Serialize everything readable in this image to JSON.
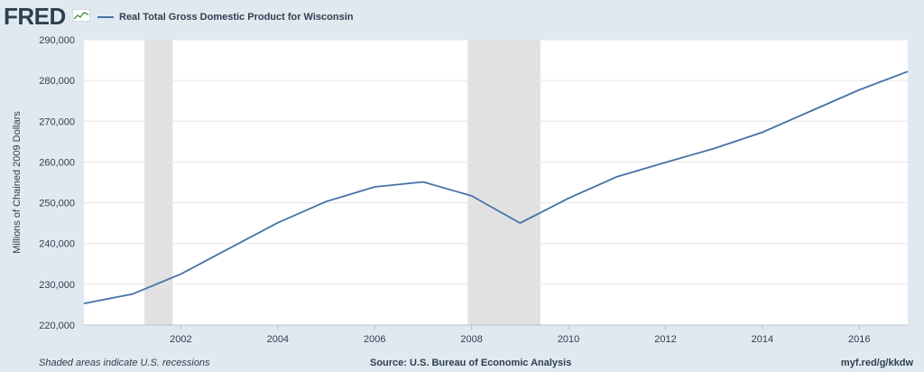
{
  "header": {
    "logo_text": "FRED",
    "logo_icon": "chart-line-icon",
    "legend_label": "Real Total Gross Domestic Product for Wisconsin",
    "series_color": "#4572a7"
  },
  "footer": {
    "note": "Shaded areas indicate U.S. recessions",
    "source": "Source: U.S. Bureau of Economic Analysis",
    "url": "myf.red/g/kkdw"
  },
  "chart_data": {
    "type": "line",
    "title": "",
    "xlabel": "",
    "ylabel": "Millions of Chained 2009 Dollars",
    "x": [
      2000,
      2001,
      2002,
      2003,
      2004,
      2005,
      2006,
      2007,
      2008,
      2009,
      2010,
      2011,
      2012,
      2013,
      2014,
      2015,
      2016,
      2017
    ],
    "series": [
      {
        "name": "Real Total Gross Domestic Product for Wisconsin",
        "color": "#4572a7",
        "values": [
          225300,
          227600,
          232500,
          238800,
          245100,
          250300,
          253900,
          255100,
          251700,
          245000,
          251100,
          256400,
          259900,
          263300,
          267300,
          272500,
          277700,
          282200
        ]
      }
    ],
    "xlim": [
      2000,
      2017
    ],
    "ylim": [
      220000,
      290000
    ],
    "x_ticks": [
      2002,
      2004,
      2006,
      2008,
      2010,
      2012,
      2014,
      2016
    ],
    "x_tick_labels": [
      "2002",
      "2004",
      "2006",
      "2008",
      "2010",
      "2012",
      "2014",
      "2016"
    ],
    "y_ticks": [
      220000,
      230000,
      240000,
      250000,
      260000,
      270000,
      280000,
      290000
    ],
    "y_tick_labels": [
      "220,000",
      "230,000",
      "240,000",
      "250,000",
      "260,000",
      "270,000",
      "280,000",
      "290,000"
    ],
    "recessions": [
      [
        2001.25,
        2001.83
      ],
      [
        2007.92,
        2009.42
      ]
    ],
    "grid": true,
    "legend_position": "top-left"
  }
}
